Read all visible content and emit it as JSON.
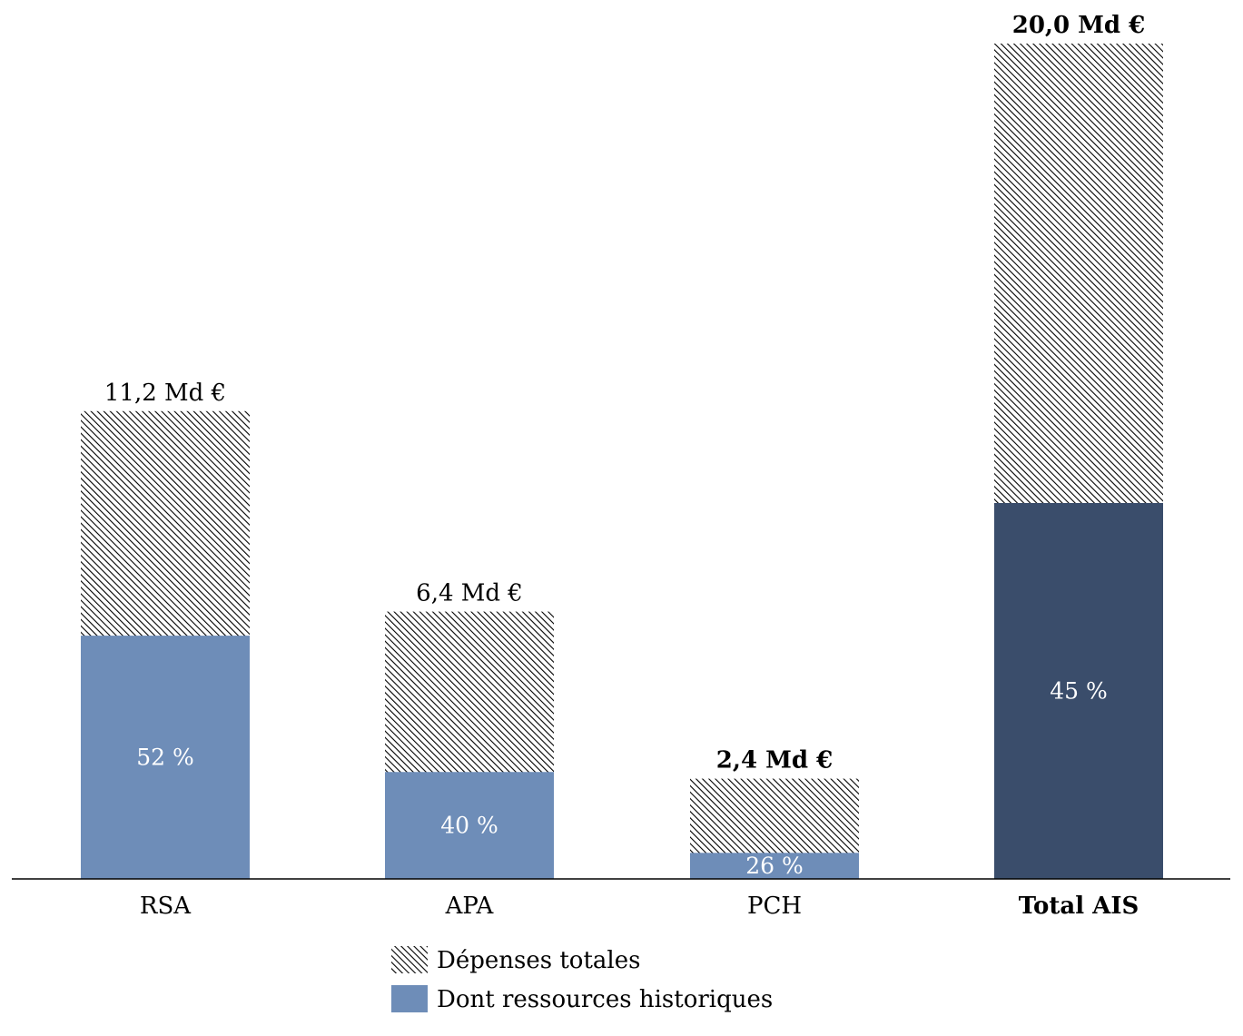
{
  "chart_data": {
    "type": "bar",
    "stacking": "overlay",
    "categories": [
      "RSA",
      "APA",
      "PCH",
      "Total AIS"
    ],
    "series": [
      {
        "name": "Dépenses totales",
        "pattern": "hatched",
        "values": [
          11.2,
          6.4,
          2.4,
          20.0
        ],
        "labels": [
          "11,2 Md €",
          "6,4 Md €",
          "2,4 Md €",
          "20,0 Md €"
        ]
      },
      {
        "name": "Dont ressources historiques",
        "share_percent": [
          52,
          40,
          26,
          45
        ],
        "labels": [
          "52 %",
          "40 %",
          "26 %",
          "45 %"
        ]
      }
    ],
    "bold_categories": [
      "Total AIS"
    ],
    "bold_total_labels": [
      "2,4 Md €",
      "20,0 Md €"
    ],
    "ylim": [
      0,
      20.0
    ],
    "grid": false,
    "legend_position": "bottom-center",
    "colors": {
      "historic": "#6e8db8",
      "historic_total": "#3a4d6b",
      "hatch": "#000000",
      "axis": "#000000"
    }
  }
}
